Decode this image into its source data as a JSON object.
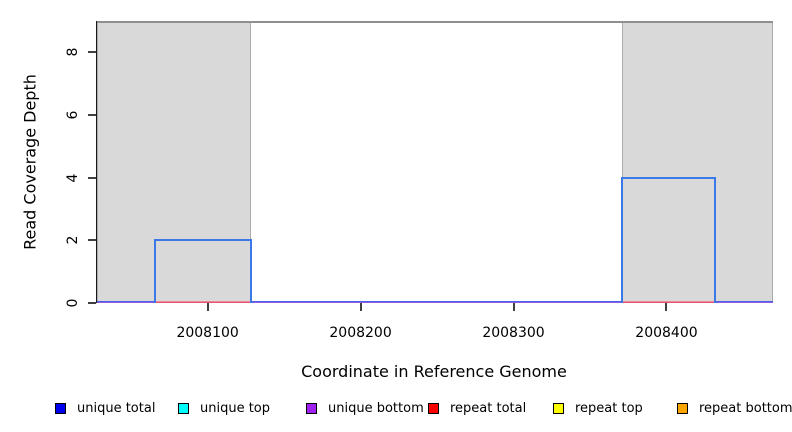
{
  "chart_data": {
    "type": "line",
    "subtype": "step-coverage",
    "title": "",
    "xlabel": "Coordinate in Reference Genome",
    "ylabel": "Read Coverage Depth",
    "x_range": [
      2008027,
      2008469
    ],
    "y_range": [
      0,
      9
    ],
    "x_ticks": [
      "2008100",
      "2008200",
      "2008300",
      "2008400"
    ],
    "y_ticks": [
      "0",
      "2",
      "4",
      "6",
      "8"
    ],
    "grid": false,
    "legend_position": "bottom",
    "repeat_region_shades": [
      {
        "x0": 2008027,
        "x1": 2008128
      },
      {
        "x0": 2008370,
        "x1": 2008469
      }
    ],
    "series": [
      {
        "name": "unique total",
        "color": "#0000ee",
        "segments": [
          {
            "x0": 2008027,
            "x1": 2008065,
            "y": 0
          },
          {
            "x0": 2008065,
            "x1": 2008128,
            "y": 2
          },
          {
            "x0": 2008128,
            "x1": 2008370,
            "y": 0
          },
          {
            "x0": 2008370,
            "x1": 2008431,
            "y": 4
          },
          {
            "x0": 2008431,
            "x1": 2008469,
            "y": 0
          }
        ]
      },
      {
        "name": "unique top",
        "color": "#00ffff",
        "segments": [
          {
            "x0": 2008027,
            "x1": 2008469,
            "y": 0
          }
        ]
      },
      {
        "name": "unique bottom",
        "color": "#a020f0",
        "segments": [
          {
            "x0": 2008027,
            "x1": 2008469,
            "y": 0
          }
        ]
      },
      {
        "name": "repeat total",
        "color": "#ff0000",
        "segments": [
          {
            "x0": 2008065,
            "x1": 2008128,
            "y": 0
          },
          {
            "x0": 2008370,
            "x1": 2008431,
            "y": 0
          }
        ]
      },
      {
        "name": "repeat top",
        "color": "#ffff00",
        "segments": [
          {
            "x0": 2008027,
            "x1": 2008469,
            "y": 0
          }
        ]
      },
      {
        "name": "repeat bottom",
        "color": "#ffa500",
        "segments": [
          {
            "x0": 2008027,
            "x1": 2008469,
            "y": 0
          }
        ]
      }
    ]
  },
  "legend": {
    "items": [
      {
        "label": "unique total",
        "color": "#0000ee"
      },
      {
        "label": "unique top",
        "color": "#00ffff"
      },
      {
        "label": "unique bottom",
        "color": "#a020f0"
      },
      {
        "label": "repeat total",
        "color": "#ff0000"
      },
      {
        "label": "repeat top",
        "color": "#ffff00"
      },
      {
        "label": "repeat bottom",
        "color": "#ffa500"
      }
    ]
  },
  "colors": {
    "shade_fill": "#d9d9d9",
    "shade_border": "#ababab",
    "top_rule": "#8f8f8f",
    "step_line": "#3b79e8",
    "baseline_unique_total": "#4a5fe8",
    "baseline_unique_bottom": "#8d5fe0",
    "repeat_zero_line": "#dd3b55",
    "axis": "#1a1a1a"
  }
}
